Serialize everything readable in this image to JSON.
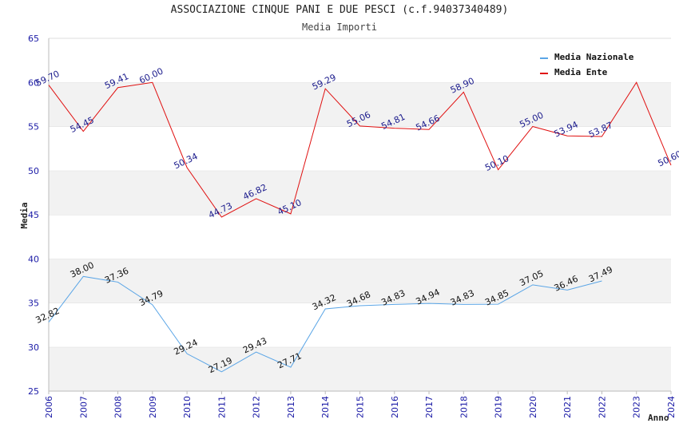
{
  "chart_data": {
    "type": "line",
    "title": "ASSOCIAZIONE CINQUE PANI E DUE PESCI (c.f.94037340489)",
    "subtitle": "Media Importi",
    "xlabel": "Anno",
    "ylabel": "Media",
    "ylim": [
      25,
      65
    ],
    "yticks": [
      25,
      30,
      35,
      40,
      45,
      50,
      55,
      60,
      65
    ],
    "x": [
      "2006",
      "2007",
      "2008",
      "2009",
      "2010",
      "2011",
      "2012",
      "2013",
      "2014",
      "2015",
      "2016",
      "2017",
      "2018",
      "2019",
      "2020",
      "2021",
      "2022",
      "2023",
      "2024"
    ],
    "grid": "horizontal alternating bands",
    "legend_position": "top-right",
    "series": [
      {
        "name": "Media Nazionale",
        "color": "#5aa5e6",
        "label_color": "#111111",
        "values": [
          32.82,
          38.0,
          37.36,
          34.79,
          29.24,
          27.19,
          29.43,
          27.71,
          34.32,
          34.68,
          34.83,
          34.94,
          34.83,
          34.85,
          37.05,
          36.46,
          37.49,
          null,
          null
        ],
        "labels": [
          "32.82",
          "38.00",
          "37.36",
          "34.79",
          "29.24",
          "27.19",
          "29.43",
          "27.71",
          "34.32",
          "34.68",
          "34.83",
          "34.94",
          "34.83",
          "34.85",
          "37.05",
          "36.46",
          "37.49",
          "",
          ""
        ]
      },
      {
        "name": "Media Ente",
        "color": "#e01010",
        "label_color": "#1a1a8c",
        "values": [
          59.7,
          54.45,
          59.41,
          60.0,
          50.34,
          44.73,
          46.82,
          45.1,
          59.29,
          55.06,
          54.81,
          54.66,
          58.9,
          50.1,
          55.0,
          53.94,
          53.87,
          60.0,
          50.6
        ],
        "labels": [
          "59.70",
          "54.45",
          "59.41",
          "60.00",
          "50.34",
          "44.73",
          "46.82",
          "45.10",
          "59.29",
          "55.06",
          "54.81",
          "54.66",
          "58.90",
          "50.10",
          "55.00",
          "53.94",
          "53.87",
          "",
          "50.60"
        ]
      }
    ]
  }
}
